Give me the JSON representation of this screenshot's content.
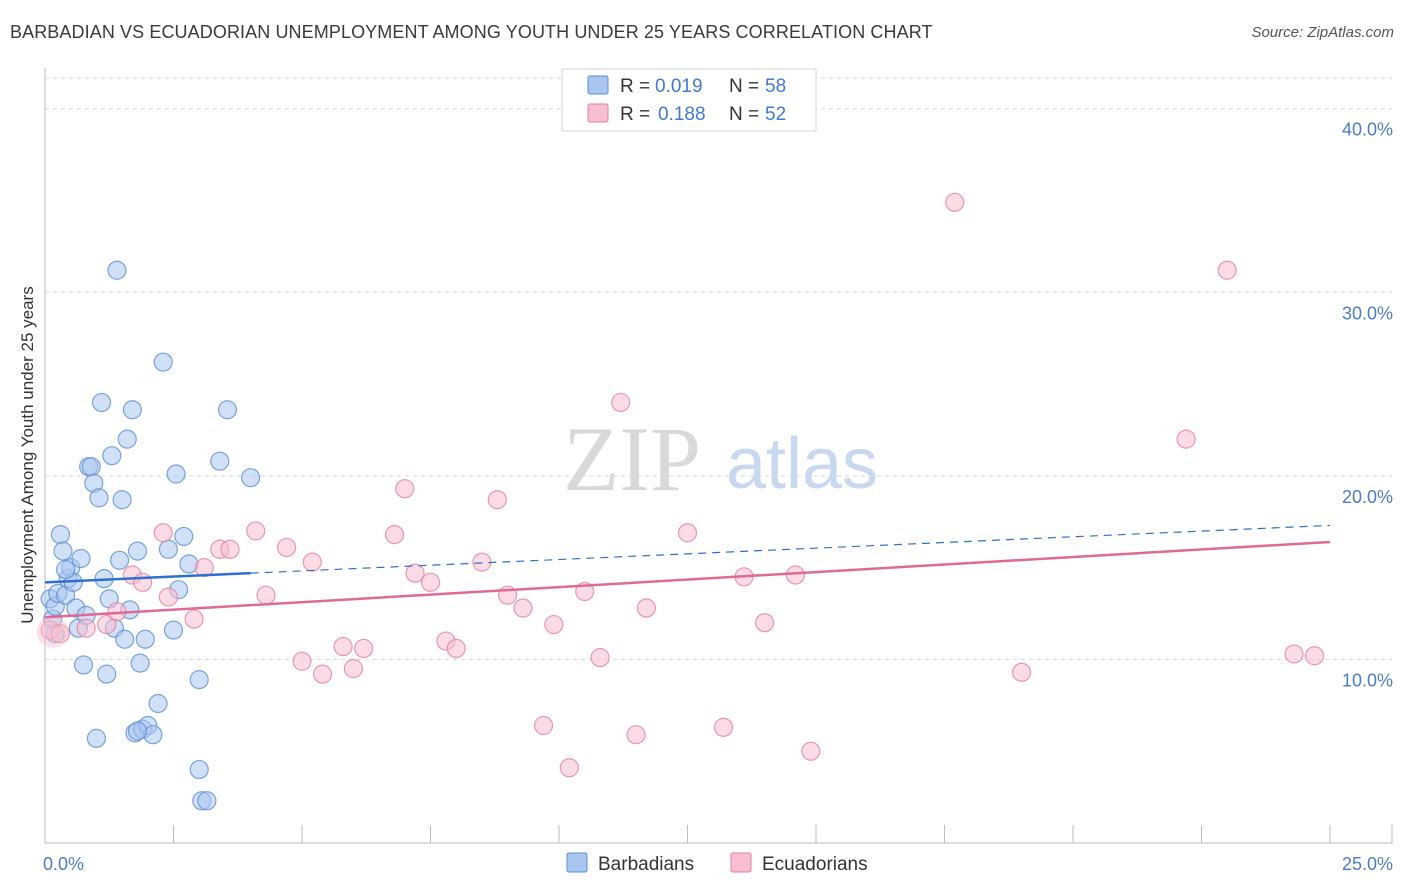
{
  "title": "BARBADIAN VS ECUADORIAN UNEMPLOYMENT AMONG YOUTH UNDER 25 YEARS CORRELATION CHART",
  "source": "Source: ZipAtlas.com",
  "watermark": {
    "zip": "ZIP",
    "atlas": "atlas"
  },
  "colors": {
    "blue_fill": "#a9c6ef",
    "blue_stroke": "#5b8fd6",
    "blue_line": "#2f6fcf",
    "pink_fill": "#f7bfd0",
    "pink_stroke": "#e67fa0",
    "pink_line": "#e06a95",
    "tick": "#4a7cc7",
    "grid": "#d9d9d9"
  },
  "legend": {
    "rows": [
      {
        "r_label": "R =",
        "r_value": "0.019",
        "n_label": "N =",
        "n_value": "58"
      },
      {
        "r_label": "R =",
        "r_value": "0.188",
        "n_label": "N =",
        "n_value": "52"
      }
    ]
  },
  "chart_data": {
    "type": "scatter",
    "title": "BARBADIAN VS ECUADORIAN UNEMPLOYMENT AMONG YOUTH UNDER 25 YEARS CORRELATION CHART",
    "xlabel": "",
    "ylabel": "Unemployment Among Youth under 25 years",
    "xlim": [
      0,
      25
    ],
    "ylim": [
      0,
      42
    ],
    "x_tick_labels": [
      {
        "value": 0,
        "label": "0.0%"
      },
      {
        "value": 25,
        "label": "25.0%"
      }
    ],
    "y_ticks": [
      {
        "value": 10,
        "label": "10.0%"
      },
      {
        "value": 20,
        "label": "20.0%"
      },
      {
        "value": 30,
        "label": "30.0%"
      },
      {
        "value": 40,
        "label": "40.0%"
      }
    ],
    "legend_position": "top-center",
    "series": [
      {
        "name": "Barbadians",
        "r": 0.019,
        "n": 58,
        "trend": {
          "x0": 0,
          "y0": 14.2,
          "x1": 4.0,
          "y1": 14.7,
          "dashed_to_x": 25,
          "dashed_to_y": 17.3
        },
        "points": [
          [
            0.1,
            13.3
          ],
          [
            0.15,
            12.2
          ],
          [
            0.2,
            12.9
          ],
          [
            0.25,
            13.6
          ],
          [
            0.3,
            16.8
          ],
          [
            0.35,
            15.9
          ],
          [
            0.4,
            13.5
          ],
          [
            0.45,
            14.4
          ],
          [
            0.5,
            15.0
          ],
          [
            0.55,
            14.2
          ],
          [
            0.6,
            12.8
          ],
          [
            0.65,
            11.7
          ],
          [
            0.7,
            15.5
          ],
          [
            0.75,
            9.7
          ],
          [
            0.8,
            12.4
          ],
          [
            0.85,
            20.5
          ],
          [
            0.9,
            20.5
          ],
          [
            0.95,
            19.6
          ],
          [
            1.0,
            5.7
          ],
          [
            1.05,
            18.8
          ],
          [
            1.1,
            24.0
          ],
          [
            1.15,
            14.4
          ],
          [
            1.2,
            9.2
          ],
          [
            1.25,
            13.3
          ],
          [
            1.3,
            21.1
          ],
          [
            1.35,
            11.7
          ],
          [
            1.4,
            31.2
          ],
          [
            1.45,
            15.4
          ],
          [
            1.5,
            18.7
          ],
          [
            1.55,
            11.1
          ],
          [
            1.6,
            22.0
          ],
          [
            1.65,
            12.7
          ],
          [
            1.7,
            23.6
          ],
          [
            1.75,
            6.0
          ],
          [
            1.8,
            15.9
          ],
          [
            1.85,
            9.8
          ],
          [
            1.9,
            6.2
          ],
          [
            1.95,
            11.1
          ],
          [
            2.0,
            6.4
          ],
          [
            2.1,
            5.9
          ],
          [
            2.2,
            7.6
          ],
          [
            2.3,
            26.2
          ],
          [
            2.4,
            16.0
          ],
          [
            2.5,
            11.6
          ],
          [
            2.55,
            20.1
          ],
          [
            2.6,
            13.8
          ],
          [
            2.7,
            16.7
          ],
          [
            2.8,
            15.2
          ],
          [
            3.0,
            8.9
          ],
          [
            3.05,
            2.3
          ],
          [
            3.15,
            2.3
          ],
          [
            3.0,
            4.0
          ],
          [
            3.4,
            20.8
          ],
          [
            3.55,
            23.6
          ],
          [
            4.0,
            19.9
          ],
          [
            1.8,
            6.1
          ],
          [
            0.2,
            11.4
          ],
          [
            0.4,
            14.9
          ]
        ]
      },
      {
        "name": "Ecuadorians",
        "r": 0.188,
        "n": 52,
        "trend": {
          "x0": 0,
          "y0": 12.3,
          "x1": 25,
          "y1": 16.4
        },
        "points": [
          [
            0.1,
            11.6
          ],
          [
            0.3,
            11.4
          ],
          [
            0.8,
            11.7
          ],
          [
            1.2,
            11.9
          ],
          [
            1.4,
            12.6
          ],
          [
            1.7,
            14.6
          ],
          [
            1.9,
            14.2
          ],
          [
            2.4,
            13.4
          ],
          [
            2.3,
            16.9
          ],
          [
            2.9,
            12.2
          ],
          [
            3.1,
            15.0
          ],
          [
            3.4,
            16.0
          ],
          [
            3.6,
            16.0
          ],
          [
            4.1,
            17.0
          ],
          [
            4.3,
            13.5
          ],
          [
            4.7,
            16.1
          ],
          [
            5.0,
            9.9
          ],
          [
            5.2,
            15.3
          ],
          [
            5.4,
            9.2
          ],
          [
            5.8,
            10.7
          ],
          [
            6.0,
            9.5
          ],
          [
            6.2,
            10.6
          ],
          [
            6.8,
            16.8
          ],
          [
            7.0,
            19.3
          ],
          [
            7.2,
            14.7
          ],
          [
            7.5,
            14.2
          ],
          [
            7.8,
            11.0
          ],
          [
            8.0,
            10.6
          ],
          [
            8.5,
            15.3
          ],
          [
            8.8,
            18.7
          ],
          [
            9.0,
            13.5
          ],
          [
            9.3,
            12.8
          ],
          [
            9.7,
            6.4
          ],
          [
            9.9,
            11.9
          ],
          [
            10.2,
            4.1
          ],
          [
            10.5,
            13.7
          ],
          [
            10.8,
            10.1
          ],
          [
            11.2,
            24.0
          ],
          [
            11.5,
            5.9
          ],
          [
            11.7,
            12.8
          ],
          [
            12.5,
            16.9
          ],
          [
            13.2,
            6.3
          ],
          [
            13.6,
            14.5
          ],
          [
            14.0,
            12.0
          ],
          [
            14.6,
            14.6
          ],
          [
            14.9,
            5.0
          ],
          [
            17.7,
            34.9
          ],
          [
            19.0,
            9.3
          ],
          [
            22.2,
            22.0
          ],
          [
            23.0,
            31.2
          ],
          [
            24.3,
            10.3
          ],
          [
            24.7,
            10.2
          ]
        ]
      }
    ]
  },
  "bottom_legend": [
    {
      "label": "Barbadians"
    },
    {
      "label": "Ecuadorians"
    }
  ]
}
